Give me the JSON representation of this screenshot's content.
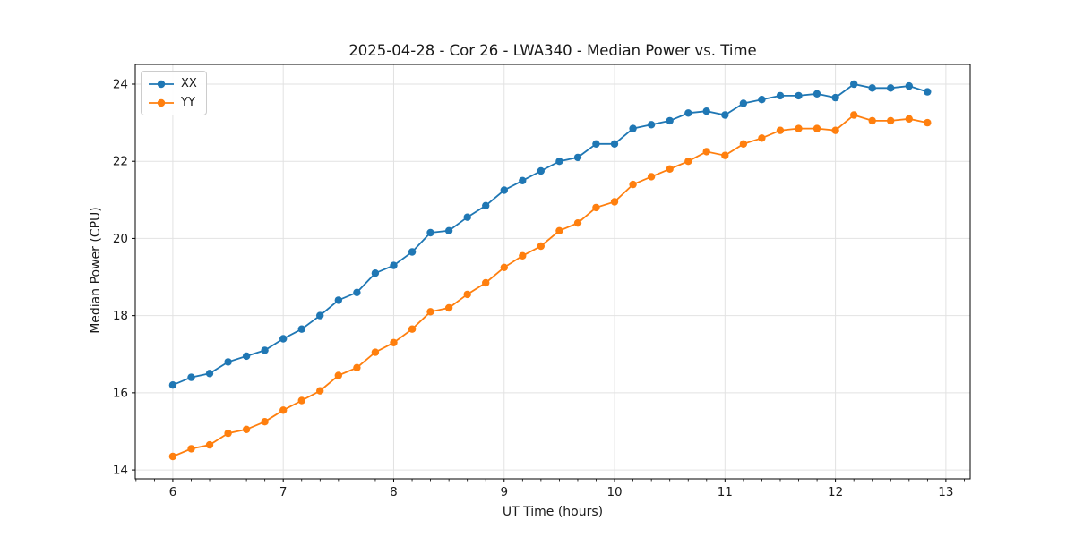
{
  "chart_data": {
    "type": "line",
    "title": "2025-04-28 - Cor 26 - LWA340 - Median Power vs. Time",
    "xlabel": "UT Time (hours)",
    "ylabel": "Median Power (CPU)",
    "xlim": [
      5.66,
      13.22
    ],
    "ylim": [
      13.77,
      24.51
    ],
    "x_ticks": [
      6,
      7,
      8,
      9,
      10,
      11,
      12,
      13
    ],
    "x_tick_labels": [
      "6",
      "7",
      "8",
      "9",
      "10",
      "11",
      "12",
      "13"
    ],
    "x_minor_tick_step": 0.16667,
    "y_ticks": [
      14,
      16,
      18,
      20,
      22,
      24
    ],
    "y_tick_labels": [
      "14",
      "16",
      "18",
      "20",
      "22",
      "24"
    ],
    "grid": true,
    "legend_position": "upper left",
    "marker": "circle",
    "x": [
      6,
      6.167,
      6.333,
      6.5,
      6.667,
      6.833,
      7,
      7.167,
      7.333,
      7.5,
      7.667,
      7.833,
      8,
      8.167,
      8.333,
      8.5,
      8.667,
      8.833,
      9,
      9.167,
      9.333,
      9.5,
      9.667,
      9.833,
      10,
      10.167,
      10.333,
      10.5,
      10.667,
      10.833,
      11,
      11.167,
      11.333,
      11.5,
      11.667,
      11.833,
      12,
      12.167,
      12.333,
      12.5,
      12.667,
      12.833
    ],
    "series": [
      {
        "name": "XX",
        "color": "#1f77b4",
        "values": [
          16.2,
          16.4,
          16.5,
          16.8,
          16.95,
          17.1,
          17.4,
          17.65,
          18.0,
          18.4,
          18.6,
          19.1,
          19.3,
          19.65,
          20.15,
          20.2,
          20.55,
          20.85,
          21.25,
          21.5,
          21.75,
          22.0,
          22.1,
          22.45,
          22.45,
          22.85,
          22.95,
          23.05,
          23.25,
          23.3,
          23.2,
          23.5,
          23.6,
          23.7,
          23.7,
          23.75,
          23.65,
          24.0,
          23.9,
          23.9,
          23.95,
          23.8
        ]
      },
      {
        "name": "YY",
        "color": "#ff7f0e",
        "values": [
          14.35,
          14.55,
          14.65,
          14.95,
          15.05,
          15.25,
          15.55,
          15.8,
          16.05,
          16.45,
          16.65,
          17.05,
          17.3,
          17.65,
          18.1,
          18.2,
          18.55,
          18.85,
          19.25,
          19.55,
          19.8,
          20.2,
          20.4,
          20.8,
          20.95,
          21.4,
          21.6,
          21.8,
          22.0,
          22.25,
          22.15,
          22.45,
          22.6,
          22.8,
          22.85,
          22.85,
          22.8,
          23.2,
          23.05,
          23.05,
          23.1,
          23.0
        ]
      }
    ],
    "style": {
      "grid_color": "#e2e2e2",
      "spine_color": "#000000",
      "text_color": "#1a1a1a",
      "background": "#ffffff"
    }
  }
}
